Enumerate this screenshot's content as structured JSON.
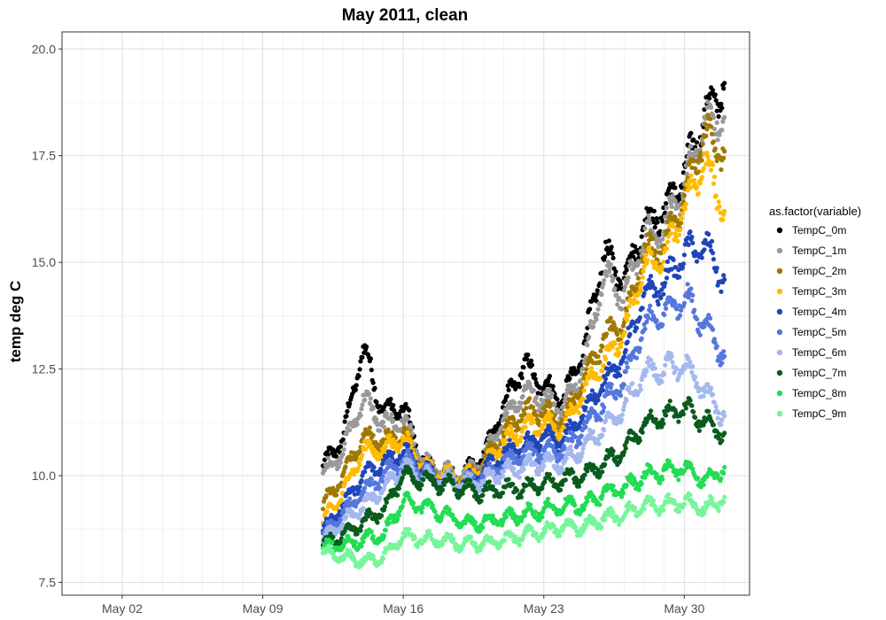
{
  "chart_data": {
    "type": "scatter",
    "title": "May 2011, clean",
    "xlabel": "",
    "ylabel": "temp deg C",
    "x_tick_labels": [
      "May 02",
      "May 09",
      "May 16",
      "May 23",
      "May 30"
    ],
    "x_ticks": [
      "2011-05-02",
      "2011-05-09",
      "2011-05-16",
      "2011-05-23",
      "2011-05-30"
    ],
    "xlim": [
      "2011-04-29T00:00",
      "2011-06-02T06:00"
    ],
    "y_tick_labels": [
      "7.5",
      "10.0",
      "12.5",
      "15.0",
      "17.5",
      "20.0"
    ],
    "y_ticks": [
      7.5,
      10.0,
      12.5,
      15.0,
      17.5,
      20.0
    ],
    "ylim": [
      7.2,
      20.4
    ],
    "grid": true,
    "legend": {
      "title": "as.factor(variable)",
      "position": "right"
    },
    "series": [
      {
        "name": "TempC_0m",
        "color": "#000000",
        "x": [
          "2011-05-12",
          "2011-05-13",
          "2011-05-14",
          "2011-05-15",
          "2011-05-16",
          "2011-05-17",
          "2011-05-18",
          "2011-05-19",
          "2011-05-20",
          "2011-05-21",
          "2011-05-22",
          "2011-05-23",
          "2011-05-24",
          "2011-05-25",
          "2011-05-26",
          "2011-05-27",
          "2011-05-28",
          "2011-05-29",
          "2011-05-30",
          "2011-05-31",
          "2011-06-01"
        ],
        "y": [
          10.2,
          10.9,
          13.0,
          11.5,
          11.6,
          10.3,
          10.1,
          10.0,
          10.5,
          11.6,
          12.6,
          12.1,
          11.8,
          13.0,
          15.2,
          14.6,
          15.9,
          16.2,
          17.1,
          18.4,
          19.2
        ]
      },
      {
        "name": "TempC_1m",
        "color": "#999999",
        "x": [
          "2011-05-12",
          "2011-05-13",
          "2011-05-14",
          "2011-05-15",
          "2011-05-16",
          "2011-05-17",
          "2011-05-18",
          "2011-05-19",
          "2011-05-20",
          "2011-05-21",
          "2011-05-22",
          "2011-05-23",
          "2011-05-24",
          "2011-05-25",
          "2011-05-26",
          "2011-05-27",
          "2011-05-28",
          "2011-05-29",
          "2011-05-30",
          "2011-05-31",
          "2011-06-01"
        ],
        "y": [
          10.0,
          10.6,
          11.8,
          11.2,
          11.3,
          10.3,
          10.1,
          10.0,
          10.4,
          11.3,
          12.0,
          11.8,
          11.6,
          12.6,
          14.7,
          14.2,
          15.6,
          15.8,
          16.8,
          18.2,
          18.4
        ]
      },
      {
        "name": "TempC_2m",
        "color": "#A07800",
        "x": [
          "2011-05-12",
          "2011-05-13",
          "2011-05-14",
          "2011-05-15",
          "2011-05-16",
          "2011-05-17",
          "2011-05-18",
          "2011-05-19",
          "2011-05-20",
          "2011-05-21",
          "2011-05-22",
          "2011-05-23",
          "2011-05-24",
          "2011-05-25",
          "2011-05-26",
          "2011-05-27",
          "2011-05-28",
          "2011-05-29",
          "2011-05-30",
          "2011-05-31",
          "2011-06-01"
        ],
        "y": [
          9.3,
          10.0,
          10.9,
          10.8,
          11.0,
          10.2,
          10.0,
          9.9,
          10.3,
          11.0,
          11.5,
          11.5,
          11.3,
          12.3,
          13.2,
          13.6,
          15.2,
          15.4,
          16.5,
          18.0,
          17.6
        ]
      },
      {
        "name": "TempC_3m",
        "color": "#FFBB00",
        "x": [
          "2011-05-12",
          "2011-05-13",
          "2011-05-14",
          "2011-05-15",
          "2011-05-16",
          "2011-05-17",
          "2011-05-18",
          "2011-05-19",
          "2011-05-20",
          "2011-05-21",
          "2011-05-22",
          "2011-05-23",
          "2011-05-24",
          "2011-05-25",
          "2011-05-26",
          "2011-05-27",
          "2011-05-28",
          "2011-05-29",
          "2011-05-30",
          "2011-05-31",
          "2011-06-01"
        ],
        "y": [
          8.9,
          9.6,
          10.6,
          10.6,
          10.9,
          10.2,
          10.0,
          9.9,
          10.2,
          10.8,
          11.1,
          11.2,
          11.1,
          12.0,
          12.7,
          13.3,
          14.9,
          15.1,
          16.3,
          17.4,
          16.2
        ]
      },
      {
        "name": "TempC_4m",
        "color": "#1F45B8",
        "x": [
          "2011-05-12",
          "2011-05-13",
          "2011-05-14",
          "2011-05-15",
          "2011-05-16",
          "2011-05-17",
          "2011-05-18",
          "2011-05-19",
          "2011-05-20",
          "2011-05-21",
          "2011-05-22",
          "2011-05-23",
          "2011-05-24",
          "2011-05-25",
          "2011-05-26",
          "2011-05-27",
          "2011-05-28",
          "2011-05-29",
          "2011-05-30",
          "2011-05-31",
          "2011-06-01"
        ],
        "y": [
          8.7,
          9.3,
          10.0,
          10.3,
          10.6,
          10.1,
          9.9,
          9.8,
          10.1,
          10.5,
          10.7,
          10.9,
          10.8,
          11.5,
          12.2,
          12.8,
          14.2,
          14.5,
          15.2,
          15.4,
          14.6
        ]
      },
      {
        "name": "TempC_5m",
        "color": "#5577DD",
        "x": [
          "2011-05-12",
          "2011-05-13",
          "2011-05-14",
          "2011-05-15",
          "2011-05-16",
          "2011-05-17",
          "2011-05-18",
          "2011-05-19",
          "2011-05-20",
          "2011-05-21",
          "2011-05-22",
          "2011-05-23",
          "2011-05-24",
          "2011-05-25",
          "2011-05-26",
          "2011-05-27",
          "2011-05-28",
          "2011-05-29",
          "2011-05-30",
          "2011-05-31",
          "2011-06-01"
        ],
        "y": [
          8.6,
          9.1,
          9.6,
          10.0,
          10.4,
          10.1,
          9.9,
          9.8,
          10.0,
          10.3,
          10.5,
          10.6,
          10.6,
          11.1,
          11.7,
          12.2,
          13.5,
          13.8,
          14.2,
          13.6,
          12.8
        ]
      },
      {
        "name": "TempC_6m",
        "color": "#A4B8EE",
        "x": [
          "2011-05-12",
          "2011-05-13",
          "2011-05-14",
          "2011-05-15",
          "2011-05-16",
          "2011-05-17",
          "2011-05-18",
          "2011-05-19",
          "2011-05-20",
          "2011-05-21",
          "2011-05-22",
          "2011-05-23",
          "2011-05-24",
          "2011-05-25",
          "2011-05-26",
          "2011-05-27",
          "2011-05-28",
          "2011-05-29",
          "2011-05-30",
          "2011-05-31",
          "2011-06-01"
        ],
        "y": [
          8.5,
          8.9,
          9.3,
          9.7,
          10.2,
          10.0,
          9.9,
          9.8,
          9.9,
          10.1,
          10.2,
          10.3,
          10.3,
          10.7,
          11.1,
          11.6,
          12.4,
          12.5,
          12.6,
          12.0,
          11.4
        ]
      },
      {
        "name": "TempC_7m",
        "color": "#0A5A1E",
        "x": [
          "2011-05-12",
          "2011-05-13",
          "2011-05-14",
          "2011-05-15",
          "2011-05-16",
          "2011-05-17",
          "2011-05-18",
          "2011-05-19",
          "2011-05-20",
          "2011-05-21",
          "2011-05-22",
          "2011-05-23",
          "2011-05-24",
          "2011-05-25",
          "2011-05-26",
          "2011-05-27",
          "2011-05-28",
          "2011-05-29",
          "2011-05-30",
          "2011-05-31",
          "2011-06-01"
        ],
        "y": [
          8.4,
          8.6,
          8.9,
          9.2,
          10.0,
          9.9,
          9.8,
          9.7,
          9.6,
          9.7,
          9.7,
          9.8,
          9.9,
          10.0,
          10.3,
          10.6,
          11.2,
          11.4,
          11.6,
          11.3,
          11.0
        ]
      },
      {
        "name": "TempC_8m",
        "color": "#22DD55",
        "x": [
          "2011-05-12",
          "2011-05-13",
          "2011-05-14",
          "2011-05-15",
          "2011-05-16",
          "2011-05-17",
          "2011-05-18",
          "2011-05-19",
          "2011-05-20",
          "2011-05-21",
          "2011-05-22",
          "2011-05-23",
          "2011-05-24",
          "2011-05-25",
          "2011-05-26",
          "2011-05-27",
          "2011-05-28",
          "2011-05-29",
          "2011-05-30",
          "2011-05-31",
          "2011-06-01"
        ],
        "y": [
          8.3,
          8.4,
          8.5,
          8.6,
          9.4,
          9.3,
          9.1,
          8.9,
          8.9,
          9.0,
          9.1,
          9.2,
          9.3,
          9.3,
          9.6,
          9.7,
          10.0,
          10.1,
          10.2,
          9.9,
          10.2
        ]
      },
      {
        "name": "TempC_9m",
        "color": "#77F59A",
        "x": [
          "2011-05-12",
          "2011-05-13",
          "2011-05-14",
          "2011-05-15",
          "2011-05-16",
          "2011-05-17",
          "2011-05-18",
          "2011-05-19",
          "2011-05-20",
          "2011-05-21",
          "2011-05-22",
          "2011-05-23",
          "2011-05-24",
          "2011-05-25",
          "2011-05-26",
          "2011-05-27",
          "2011-05-28",
          "2011-05-29",
          "2011-05-30",
          "2011-05-31",
          "2011-06-01"
        ],
        "y": [
          8.2,
          8.1,
          8.0,
          8.1,
          8.6,
          8.5,
          8.5,
          8.4,
          8.4,
          8.5,
          8.6,
          8.7,
          8.8,
          8.8,
          9.0,
          9.1,
          9.3,
          9.3,
          9.4,
          9.2,
          9.5
        ]
      }
    ]
  }
}
